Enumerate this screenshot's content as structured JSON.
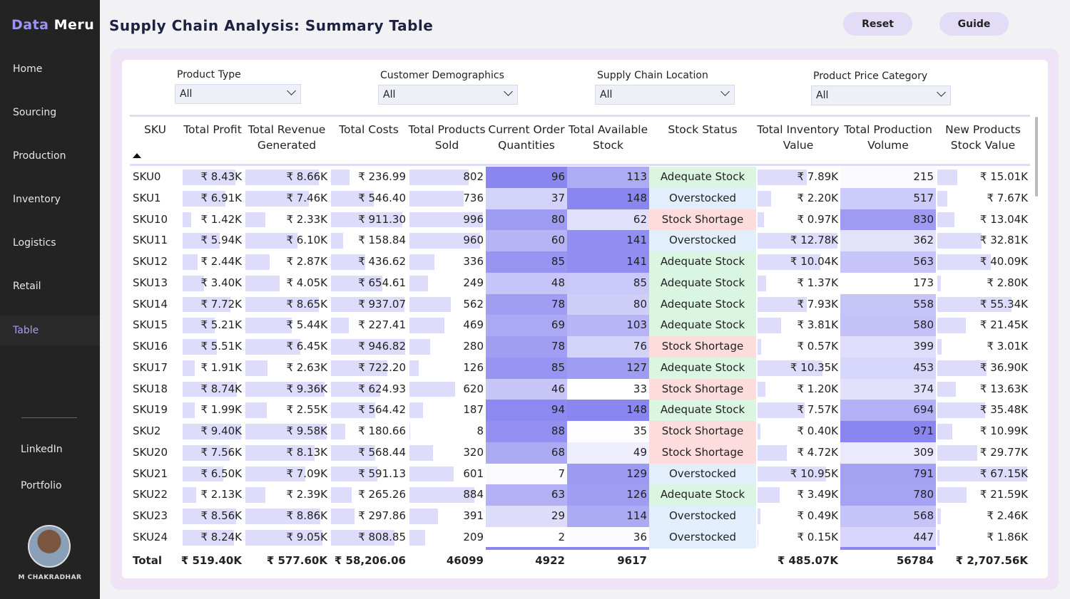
{
  "brand": {
    "first": "Data",
    "second": "Meru"
  },
  "nav": [
    "Home",
    "Sourcing",
    "Production",
    "Inventory",
    "Logistics",
    "Retail",
    "Table"
  ],
  "links": [
    "LinkedIn",
    "Portfolio"
  ],
  "user": "M CHAKRADHAR",
  "header": {
    "title": "Supply Chain Analysis: Summary Table",
    "buttons": [
      "Reset",
      "Guide"
    ]
  },
  "filters": [
    {
      "label": "Product Type",
      "value": "All"
    },
    {
      "label": "Customer Demographics",
      "value": "All"
    },
    {
      "label": "Supply Chain Location",
      "value": "All"
    },
    {
      "label": "Product Price Category",
      "value": "All"
    }
  ],
  "table": {
    "columns": [
      "SKU",
      "Total Profit",
      "Total Revenue Generated",
      "Total Costs",
      "Total Products Sold",
      "Current Order Quantities",
      "Total Available Stock",
      "Stock Status",
      "Total Inventory Value",
      "Total Production Volume",
      "New Products Stock Value"
    ],
    "rows": [
      [
        "SKU0",
        "₹ 8.43K",
        "₹ 8.66K",
        "₹ 236.99",
        802,
        96,
        113,
        "Adequate Stock",
        "₹ 7.89K",
        215,
        "₹ 15.01K"
      ],
      [
        "SKU1",
        "₹ 6.91K",
        "₹ 7.46K",
        "₹ 546.40",
        736,
        37,
        148,
        "Overstocked",
        "₹ 2.20K",
        517,
        "₹ 7.67K"
      ],
      [
        "SKU10",
        "₹ 1.42K",
        "₹ 2.33K",
        "₹ 911.30",
        996,
        80,
        62,
        "Stock Shortage",
        "₹ 0.97K",
        830,
        "₹ 13.04K"
      ],
      [
        "SKU11",
        "₹ 5.94K",
        "₹ 6.10K",
        "₹ 158.84",
        960,
        60,
        141,
        "Overstocked",
        "₹ 12.78K",
        362,
        "₹ 32.81K"
      ],
      [
        "SKU12",
        "₹ 2.44K",
        "₹ 2.87K",
        "₹ 436.62",
        336,
        85,
        141,
        "Adequate Stock",
        "₹ 10.04K",
        563,
        "₹ 40.09K"
      ],
      [
        "SKU13",
        "₹ 3.40K",
        "₹ 4.05K",
        "₹ 654.61",
        249,
        48,
        85,
        "Adequate Stock",
        "₹ 1.37K",
        173,
        "₹ 2.80K"
      ],
      [
        "SKU14",
        "₹ 7.72K",
        "₹ 8.65K",
        "₹ 937.07",
        562,
        78,
        80,
        "Adequate Stock",
        "₹ 7.93K",
        558,
        "₹ 55.34K"
      ],
      [
        "SKU15",
        "₹ 5.21K",
        "₹ 5.44K",
        "₹ 227.41",
        469,
        69,
        103,
        "Adequate Stock",
        "₹ 3.81K",
        580,
        "₹ 21.45K"
      ],
      [
        "SKU16",
        "₹ 5.51K",
        "₹ 6.45K",
        "₹ 946.82",
        280,
        78,
        76,
        "Stock Shortage",
        "₹ 0.57K",
        399,
        "₹ 3.01K"
      ],
      [
        "SKU17",
        "₹ 1.91K",
        "₹ 2.63K",
        "₹ 722.20",
        126,
        85,
        127,
        "Adequate Stock",
        "₹ 10.35K",
        453,
        "₹ 36.90K"
      ],
      [
        "SKU18",
        "₹ 8.74K",
        "₹ 9.36K",
        "₹ 624.93",
        620,
        46,
        33,
        "Stock Shortage",
        "₹ 1.20K",
        374,
        "₹ 13.63K"
      ],
      [
        "SKU19",
        "₹ 1.99K",
        "₹ 2.55K",
        "₹ 564.42",
        187,
        94,
        148,
        "Adequate Stock",
        "₹ 7.57K",
        694,
        "₹ 35.48K"
      ],
      [
        "SKU2",
        "₹ 9.40K",
        "₹ 9.58K",
        "₹ 180.66",
        8,
        88,
        35,
        "Stock Shortage",
        "₹ 0.40K",
        971,
        "₹ 10.99K"
      ],
      [
        "SKU20",
        "₹ 7.56K",
        "₹ 8.13K",
        "₹ 568.44",
        320,
        68,
        49,
        "Stock Shortage",
        "₹ 4.72K",
        309,
        "₹ 29.77K"
      ],
      [
        "SKU21",
        "₹ 6.50K",
        "₹ 7.09K",
        "₹ 591.13",
        601,
        7,
        129,
        "Overstocked",
        "₹ 10.95K",
        791,
        "₹ 67.15K"
      ],
      [
        "SKU22",
        "₹ 2.13K",
        "₹ 2.39K",
        "₹ 265.26",
        884,
        63,
        126,
        "Adequate Stock",
        "₹ 3.49K",
        780,
        "₹ 21.59K"
      ],
      [
        "SKU23",
        "₹ 8.56K",
        "₹ 8.86K",
        "₹ 297.86",
        391,
        29,
        114,
        "Overstocked",
        "₹ 0.49K",
        568,
        "₹ 2.46K"
      ],
      [
        "SKU24",
        "₹ 8.24K",
        "₹ 9.05K",
        "₹ 808.85",
        209,
        2,
        36,
        "Overstocked",
        "₹ 0.15K",
        447,
        "₹ 1.86K"
      ]
    ],
    "total": [
      "Total",
      "₹ 519.40K",
      "₹ 577.60K",
      "₹ 58,206.06",
      46099,
      4922,
      9617,
      null,
      "₹ 485.07K",
      56784,
      "₹ 2,707.56K"
    ]
  }
}
